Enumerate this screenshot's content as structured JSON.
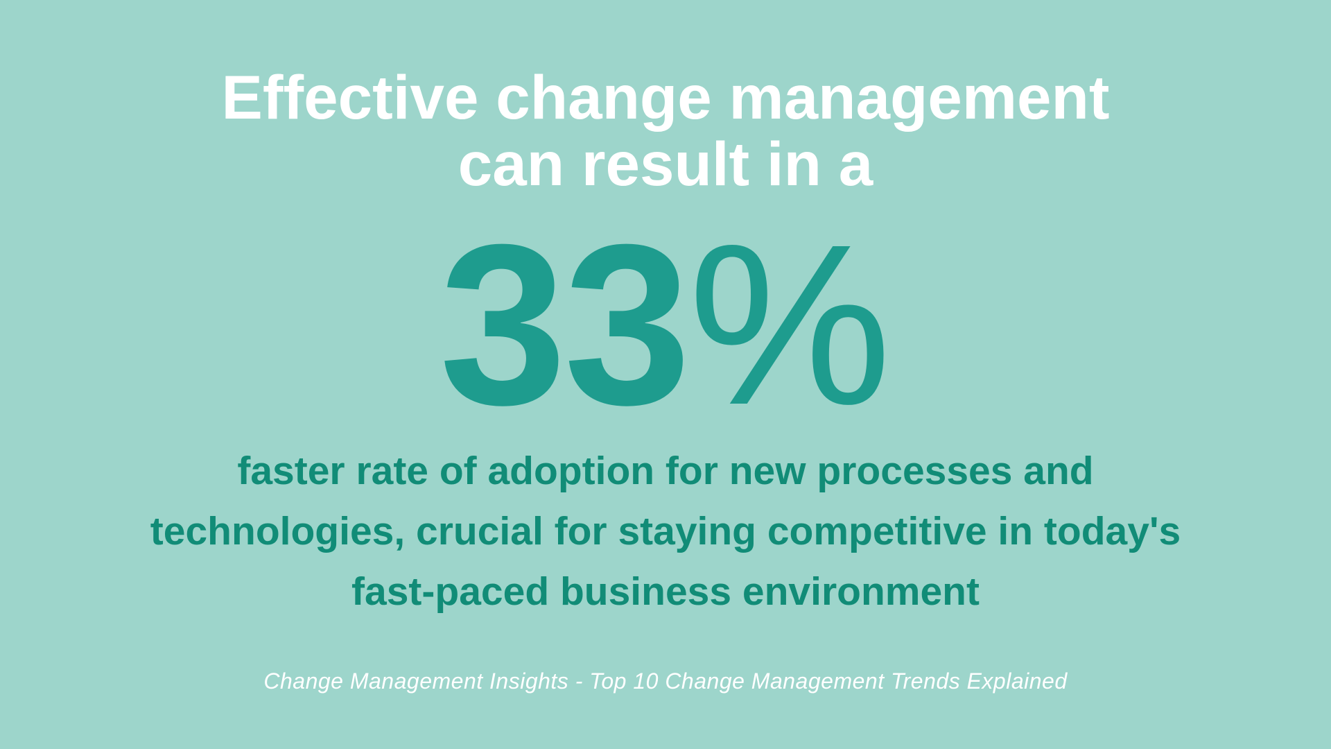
{
  "headline": {
    "line1": "Effective change management",
    "line2": "can result in a"
  },
  "stat": {
    "number": "33",
    "symbol": "%",
    "value": 33,
    "color": "#1e9c8e"
  },
  "subtext": {
    "line1": "faster rate of adoption for new processes and",
    "line2": "technologies, crucial for staying competitive in today's",
    "line3": "fast-paced business environment"
  },
  "source": "Change Management Insights - Top 10 Change Management Trends Explained",
  "colors": {
    "background": "#9dd5cb",
    "headline": "#ffffff",
    "subtext": "#118c77"
  }
}
